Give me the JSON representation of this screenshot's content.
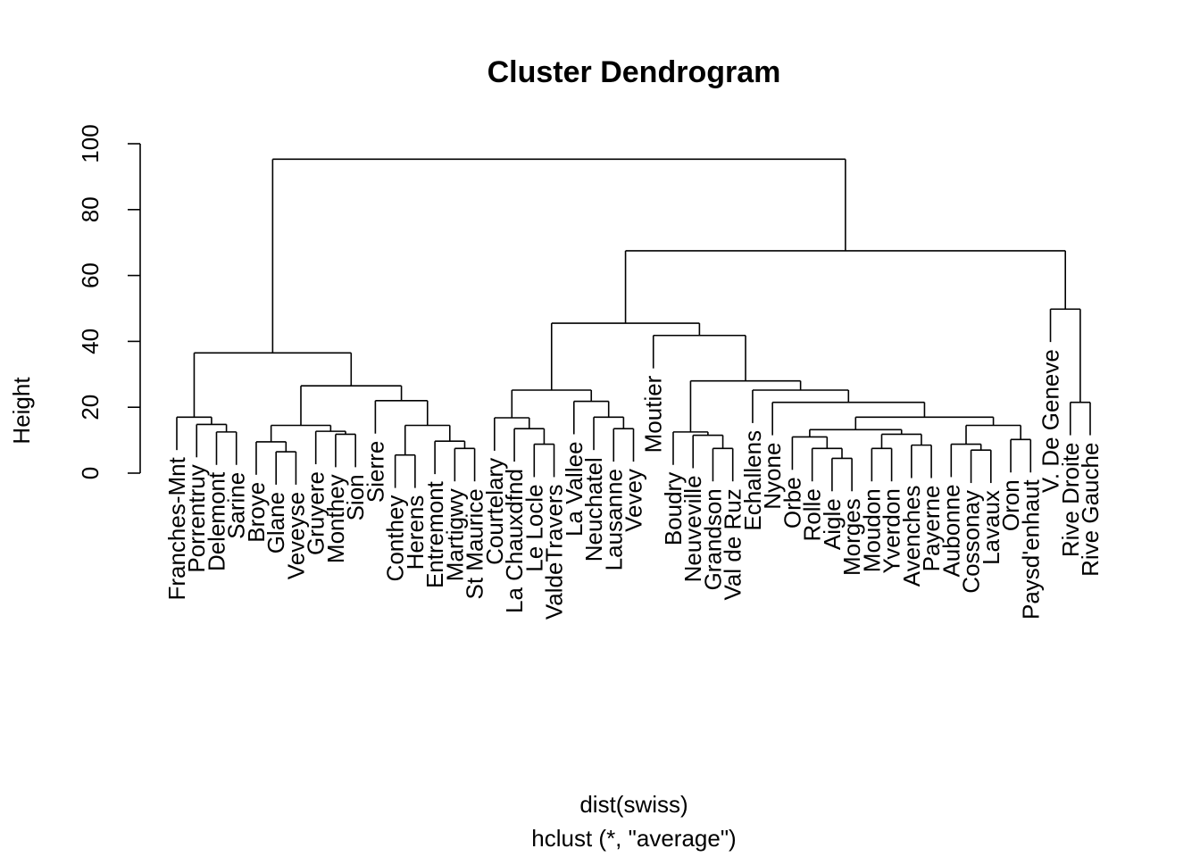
{
  "chart_data": {
    "type": "dendrogram",
    "title": "Cluster Dendrogram",
    "xlabel": "dist(swiss)",
    "sub": "hclust (*, \"average\")",
    "ylabel": "Height",
    "ylim": [
      0,
      100
    ],
    "yticks": [
      0,
      20,
      40,
      60,
      80,
      100
    ],
    "grid": false,
    "leaves": [
      "Franches-Mnt",
      "Porrentruy",
      "Delemont",
      "Sarine",
      "Broye",
      "Glane",
      "Veveyse",
      "Gruyere",
      "Monthey",
      "Sion",
      "Sierre",
      "Conthey",
      "Herens",
      "Entremont",
      "Martigwy",
      "St Maurice",
      "Courtelary",
      "La Chauxdfnd",
      "Le Locle",
      "ValdeTravers",
      "La Vallee",
      "Neuchatel",
      "Lausanne",
      "Vevey",
      "Moutier",
      "Boudry",
      "Neuveville",
      "Grandson",
      "Val de Ruz",
      "Echallens",
      "Nyone",
      "Orbe",
      "Rolle",
      "Aigle",
      "Morges",
      "Moudon",
      "Yverdon",
      "Avenches",
      "Payerne",
      "Aubonne",
      "Cossonay",
      "Lavaux",
      "Oron",
      "Paysd'enhaut",
      "V. De Geneve",
      "Rive Droite",
      "Rive Gauche"
    ],
    "merges": [
      {
        "a": "Glane",
        "b": "Veveyse",
        "h": 6.5
      },
      {
        "a": "Aigle",
        "b": "Morges",
        "h": 4.5
      },
      {
        "a": "Conthey",
        "b": "Herens",
        "h": 5.5
      },
      {
        "a": "Martigwy",
        "b": "St Maurice",
        "h": 7.5
      },
      {
        "a": "Rolle",
        "b": 1,
        "h": 7.5
      },
      {
        "a": "Moudon",
        "b": "Yverdon",
        "h": 7.5
      },
      {
        "a": "Cossonay",
        "b": "Lavaux",
        "h": 7.0
      },
      {
        "a": "Grandson",
        "b": "Val de Ruz",
        "h": 7.5
      },
      {
        "a": "Avenches",
        "b": "Payerne",
        "h": 8.5
      },
      {
        "a": "Le Locle",
        "b": "ValdeTravers",
        "h": 8.8
      },
      {
        "a": "Aubonne",
        "b": 6,
        "h": 8.8
      },
      {
        "a": "Broye",
        "b": 0,
        "h": 9.5
      },
      {
        "a": "Entremont",
        "b": 3,
        "h": 9.7
      },
      {
        "a": "Oron",
        "b": "Paysd'enhaut",
        "h": 10.2
      },
      {
        "a": "Orbe",
        "b": 4,
        "h": 11.0
      },
      {
        "a": "Monthey",
        "b": "Sion",
        "h": 11.8
      },
      {
        "a": 5,
        "b": 8,
        "h": 11.8
      },
      {
        "a": "Delemont",
        "b": "Sarine",
        "h": 12.5
      },
      {
        "a": "Neuveville",
        "b": 7,
        "h": 11.5
      },
      {
        "a": "Boudry",
        "b": 18,
        "h": 12.5
      },
      {
        "a": "Gruyere",
        "b": 15,
        "h": 12.7
      },
      {
        "a": "La Chauxdfnd",
        "b": 9,
        "h": 13.5
      },
      {
        "a": 14,
        "b": 16,
        "h": 13.2
      },
      {
        "a": "Lausanne",
        "b": "Vevey",
        "h": 13.5
      },
      {
        "a": 12,
        "b": 2,
        "h": 14.5
      },
      {
        "a": 11,
        "b": 20,
        "h": 14.5
      },
      {
        "a": 10,
        "b": 13,
        "h": 14.5
      },
      {
        "a": "Porrentruy",
        "b": 17,
        "h": 14.8
      },
      {
        "a": "Courtelary",
        "b": 21,
        "h": 16.8
      },
      {
        "a": "Neuchatel",
        "b": 23,
        "h": 17.0
      },
      {
        "a": "Franches-Mnt",
        "b": 27,
        "h": 17.0
      },
      {
        "a": 22,
        "b": 26,
        "h": 17.0
      },
      {
        "a": "Rive Droite",
        "b": "Rive Gauche",
        "h": 21.5
      },
      {
        "a": "Nyone",
        "b": 31,
        "h": 21.5
      },
      {
        "a": "La Vallee",
        "b": 29,
        "h": 21.8
      },
      {
        "a": "Sierre",
        "b": 24,
        "h": 22.0
      },
      {
        "a": "Echallens",
        "b": 33,
        "h": 25.2
      },
      {
        "a": 28,
        "b": 34,
        "h": 25.2
      },
      {
        "a": 25,
        "b": 35,
        "h": 26.5
      },
      {
        "a": 19,
        "b": 36,
        "h": 28.0
      },
      {
        "a": 30,
        "b": 38,
        "h": 36.5
      },
      {
        "a": "Moutier",
        "b": 39,
        "h": 41.8
      },
      {
        "a": 37,
        "b": 41,
        "h": 45.5
      },
      {
        "a": "V. De Geneve",
        "b": 32,
        "h": 49.8
      },
      {
        "a": 42,
        "b": 43,
        "h": 67.5
      },
      {
        "a": 40,
        "b": 44,
        "h": 95.3
      }
    ]
  }
}
